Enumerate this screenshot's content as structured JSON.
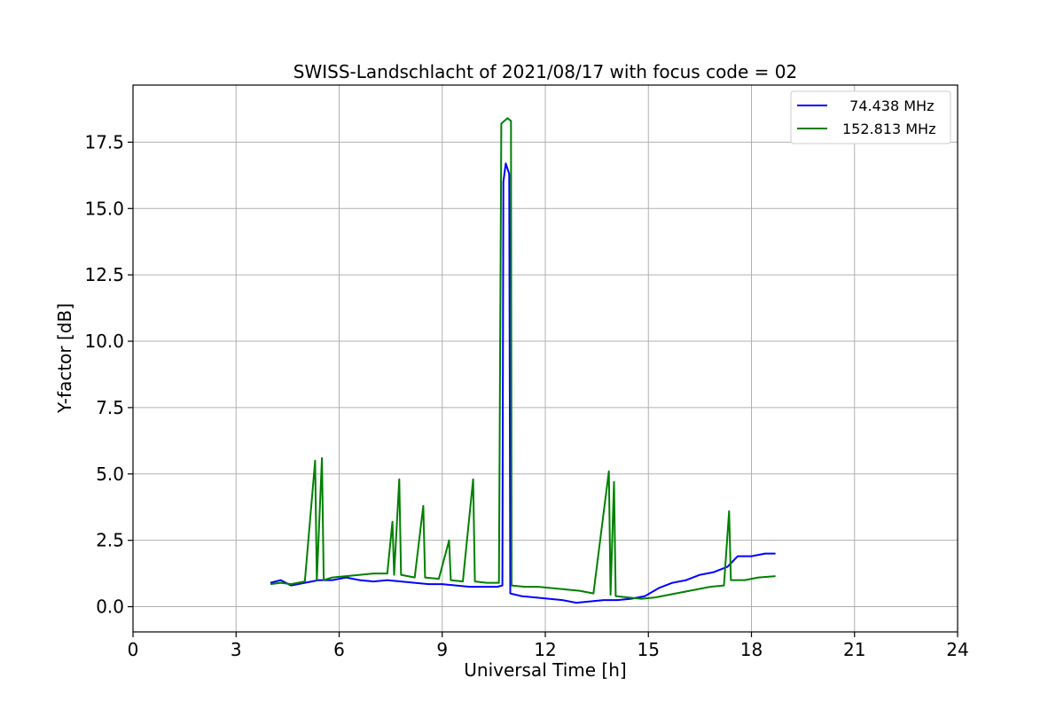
{
  "chart_data": {
    "type": "line",
    "title": "SWISS-Landschlacht of 2021/08/17 with focus code = 02",
    "xlabel": "Universal Time [h]",
    "ylabel": "Y-factor [dB]",
    "xlim": [
      0,
      24
    ],
    "ylim": [
      -0.95,
      19.65
    ],
    "xticks": [
      0,
      3,
      6,
      9,
      12,
      15,
      18,
      21,
      24
    ],
    "xtick_labels": [
      "0",
      "3",
      "6",
      "9",
      "12",
      "15",
      "18",
      "21",
      "24"
    ],
    "yticks": [
      0,
      2.5,
      5,
      7.5,
      10,
      12.5,
      15,
      17.5
    ],
    "ytick_labels": [
      "0.0",
      "2.5",
      "5.0",
      "7.5",
      "10.0",
      "12.5",
      "15.0",
      "17.5"
    ],
    "grid": true,
    "legend_position": "top-right",
    "series": [
      {
        "name": "  74.438 MHz",
        "color": "#0000ff",
        "points": [
          [
            4.0,
            0.9
          ],
          [
            4.3,
            1.0
          ],
          [
            4.6,
            0.8
          ],
          [
            5.0,
            0.9
          ],
          [
            5.4,
            1.0
          ],
          [
            5.8,
            1.0
          ],
          [
            6.2,
            1.1
          ],
          [
            6.6,
            1.0
          ],
          [
            7.0,
            0.95
          ],
          [
            7.4,
            1.0
          ],
          [
            7.8,
            0.95
          ],
          [
            8.2,
            0.9
          ],
          [
            8.6,
            0.85
          ],
          [
            9.0,
            0.85
          ],
          [
            9.4,
            0.8
          ],
          [
            9.8,
            0.75
          ],
          [
            10.2,
            0.75
          ],
          [
            10.6,
            0.75
          ],
          [
            10.75,
            0.8
          ],
          [
            10.78,
            16.0
          ],
          [
            10.85,
            16.7
          ],
          [
            10.95,
            16.3
          ],
          [
            10.98,
            0.5
          ],
          [
            11.3,
            0.4
          ],
          [
            11.7,
            0.35
          ],
          [
            12.1,
            0.3
          ],
          [
            12.5,
            0.25
          ],
          [
            12.9,
            0.15
          ],
          [
            13.3,
            0.2
          ],
          [
            13.7,
            0.25
          ],
          [
            14.1,
            0.25
          ],
          [
            14.5,
            0.3
          ],
          [
            14.9,
            0.4
          ],
          [
            15.3,
            0.7
          ],
          [
            15.7,
            0.9
          ],
          [
            16.1,
            1.0
          ],
          [
            16.5,
            1.2
          ],
          [
            16.9,
            1.3
          ],
          [
            17.3,
            1.5
          ],
          [
            17.6,
            1.9
          ],
          [
            18.0,
            1.9
          ],
          [
            18.4,
            2.0
          ],
          [
            18.7,
            2.0
          ]
        ]
      },
      {
        "name": "152.813 MHz",
        "color": "#008000",
        "points": [
          [
            4.0,
            0.85
          ],
          [
            4.3,
            0.9
          ],
          [
            4.6,
            0.85
          ],
          [
            5.0,
            0.95
          ],
          [
            5.3,
            5.5
          ],
          [
            5.35,
            1.0
          ],
          [
            5.5,
            5.6
          ],
          [
            5.55,
            1.0
          ],
          [
            5.8,
            1.1
          ],
          [
            6.2,
            1.15
          ],
          [
            6.6,
            1.2
          ],
          [
            7.0,
            1.25
          ],
          [
            7.4,
            1.25
          ],
          [
            7.55,
            3.2
          ],
          [
            7.6,
            1.2
          ],
          [
            7.75,
            4.8
          ],
          [
            7.8,
            1.2
          ],
          [
            8.2,
            1.1
          ],
          [
            8.45,
            3.8
          ],
          [
            8.5,
            1.1
          ],
          [
            8.9,
            1.05
          ],
          [
            9.2,
            2.5
          ],
          [
            9.25,
            1.0
          ],
          [
            9.6,
            0.95
          ],
          [
            9.9,
            4.8
          ],
          [
            9.95,
            0.95
          ],
          [
            10.3,
            0.9
          ],
          [
            10.65,
            0.9
          ],
          [
            10.72,
            18.2
          ],
          [
            10.9,
            18.4
          ],
          [
            11.0,
            18.3
          ],
          [
            11.02,
            0.8
          ],
          [
            11.4,
            0.75
          ],
          [
            11.8,
            0.75
          ],
          [
            12.2,
            0.7
          ],
          [
            12.6,
            0.65
          ],
          [
            13.0,
            0.6
          ],
          [
            13.4,
            0.5
          ],
          [
            13.85,
            5.1
          ],
          [
            13.9,
            0.45
          ],
          [
            14.0,
            4.7
          ],
          [
            14.05,
            0.4
          ],
          [
            14.4,
            0.35
          ],
          [
            14.8,
            0.3
          ],
          [
            15.2,
            0.35
          ],
          [
            15.6,
            0.45
          ],
          [
            16.0,
            0.55
          ],
          [
            16.4,
            0.65
          ],
          [
            16.8,
            0.75
          ],
          [
            17.2,
            0.8
          ],
          [
            17.35,
            3.6
          ],
          [
            17.4,
            1.0
          ],
          [
            17.8,
            1.0
          ],
          [
            18.2,
            1.1
          ],
          [
            18.7,
            1.15
          ]
        ]
      }
    ]
  }
}
